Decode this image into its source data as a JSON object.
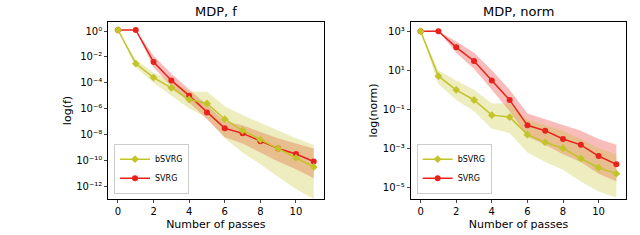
{
  "chart_data": [
    {
      "type": "line",
      "title": "MDP, f",
      "x_label": "Number of passes",
      "y_label": "log(f)",
      "log": "y",
      "grid": false,
      "legend": "lower left",
      "x": [
        0,
        1,
        2,
        3,
        4,
        5,
        6,
        7,
        8,
        9,
        10,
        11
      ],
      "xlim": [
        -0.55,
        11.55
      ],
      "xticks": [
        0,
        2,
        4,
        6,
        8,
        10
      ],
      "ylim": [
        1e-13,
        5
      ],
      "yticks": [
        {
          "value": 1,
          "label": "10⁰"
        },
        {
          "value": 0.01,
          "label": "10⁻²"
        },
        {
          "value": 0.0001,
          "label": "10⁻⁴"
        },
        {
          "value": 1e-06,
          "label": "10⁻⁶"
        },
        {
          "value": 1e-08,
          "label": "10⁻⁸"
        },
        {
          "value": 1e-10,
          "label": "10⁻¹⁰"
        },
        {
          "value": 1e-12,
          "label": "10⁻¹²"
        }
      ],
      "series": [
        {
          "name": "SVRG",
          "color": "#e8221c",
          "marker": "circle",
          "line_style": "solid",
          "values": [
            1.2,
            1.2,
            0.004,
            0.00015,
            1e-05,
            5e-07,
            3e-08,
            1.2e-08,
            3e-09,
            8e-10,
            3e-10,
            8e-11
          ],
          "lower": [
            1.2,
            1.2,
            0.0015,
            5e-05,
            3e-06,
            1.5e-07,
            6e-09,
            2e-09,
            4e-10,
            8e-11,
            2e-11,
            4e-12
          ],
          "upper": [
            1.2,
            1.2,
            0.012,
            0.0005,
            3e-05,
            2e-06,
            1e-07,
            5e-08,
            1.5e-08,
            5e-09,
            2e-09,
            8e-10
          ]
        },
        {
          "name": "bSVRG",
          "color": "#c3c32a",
          "marker": "diamond",
          "line_style": "solid",
          "values": [
            1.2,
            0.003,
            0.00025,
            4e-05,
            5e-06,
            2.5e-06,
            1.5e-07,
            2e-08,
            4e-09,
            8e-10,
            1.5e-10,
            3e-11
          ],
          "lower": [
            1.2,
            0.0015,
            0.0001,
            1e-05,
            1e-06,
            2e-07,
            5e-09,
            4e-10,
            5e-11,
            5e-12,
            6e-13,
            1e-13
          ],
          "upper": [
            1.2,
            0.006,
            0.0006,
            0.00015,
            2e-05,
            2e-05,
            1.5e-06,
            3e-07,
            8e-08,
            2e-08,
            5e-09,
            1.5e-09
          ]
        }
      ]
    },
    {
      "type": "line",
      "title": "MDP, norm",
      "x_label": "Number of passes",
      "y_label": "log(norm)",
      "log": "y",
      "grid": false,
      "legend": "lower left",
      "x": [
        0,
        1,
        2,
        3,
        4,
        5,
        6,
        7,
        8,
        9,
        10,
        11
      ],
      "xlim": [
        -0.55,
        11.55
      ],
      "xticks": [
        0,
        2,
        4,
        6,
        8,
        10
      ],
      "ylim": [
        2.5e-06,
        3000
      ],
      "yticks": [
        {
          "value": 1000,
          "label": "10³"
        },
        {
          "value": 10,
          "label": "10¹"
        },
        {
          "value": 0.1,
          "label": "10⁻¹"
        },
        {
          "value": 0.001,
          "label": "10⁻³"
        },
        {
          "value": 1e-05,
          "label": "10⁻⁵"
        }
      ],
      "series": [
        {
          "name": "SVRG",
          "color": "#e8221c",
          "marker": "circle",
          "line_style": "solid",
          "values": [
            1000,
            1000,
            150,
            30,
            3,
            0.3,
            0.015,
            0.008,
            0.003,
            0.0015,
            0.0004,
            0.00015
          ],
          "lower": [
            1000,
            1000,
            80,
            12,
            1,
            0.08,
            0.004,
            0.0015,
            0.0005,
            0.0002,
            5e-05,
            2e-05
          ],
          "upper": [
            1000,
            1000,
            300,
            80,
            10,
            1,
            0.06,
            0.03,
            0.015,
            0.008,
            0.003,
            0.0015
          ]
        },
        {
          "name": "bSVRG",
          "color": "#c3c32a",
          "marker": "diamond",
          "line_style": "solid",
          "values": [
            1000,
            5,
            1,
            0.3,
            0.05,
            0.04,
            0.005,
            0.002,
            0.001,
            0.0003,
            0.0001,
            5e-05
          ],
          "lower": [
            1000,
            2,
            0.3,
            0.08,
            0.01,
            0.006,
            0.0006,
            0.0002,
            8e-05,
            2e-05,
            6e-06,
            3e-06
          ],
          "upper": [
            1000,
            10,
            3,
            1,
            0.2,
            0.2,
            0.03,
            0.015,
            0.008,
            0.003,
            0.001,
            0.0005
          ]
        }
      ]
    }
  ]
}
